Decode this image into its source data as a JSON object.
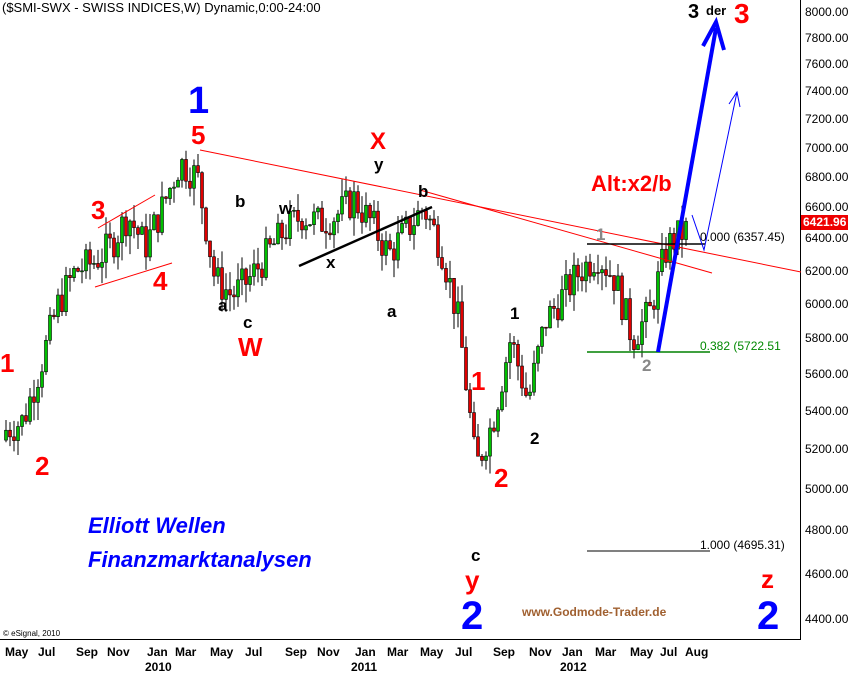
{
  "chart_data": {
    "type": "candlestick",
    "title": "($SMI-SWX - SWISS INDICES,W) Dynamic,0:00-24:00",
    "y_scale": "log",
    "ylim": [
      4300,
      8100
    ],
    "y_ticks": [
      "8000.00",
      "7800.00",
      "7600.00",
      "7400.00",
      "7200.00",
      "7000.00",
      "6800.00",
      "6600.00",
      "6400.00",
      "6200.00",
      "6000.00",
      "5800.00",
      "5600.00",
      "5400.00",
      "5200.00",
      "5000.00",
      "4800.00",
      "4600.00",
      "4400.00"
    ],
    "x_ticks": [
      "May",
      "Jul",
      "Sep",
      "Nov",
      "Jan",
      "Mar",
      "May",
      "Jul",
      "Sep",
      "Nov",
      "Jan",
      "Mar",
      "May",
      "Jul",
      "Sep",
      "Nov",
      "Jan",
      "Mar",
      "May",
      "Jul",
      "Aug"
    ],
    "x_years": [
      "2010",
      "2011",
      "2012"
    ],
    "monthly_close_approx": {
      "months": [
        "2009-05",
        "2009-06",
        "2009-07",
        "2009-08",
        "2009-09",
        "2009-10",
        "2009-11",
        "2009-12",
        "2010-01",
        "2010-02",
        "2010-03",
        "2010-04",
        "2010-05",
        "2010-06",
        "2010-07",
        "2010-08",
        "2010-09",
        "2010-10",
        "2010-11",
        "2010-12",
        "2011-01",
        "2011-02",
        "2011-03",
        "2011-04",
        "2011-05",
        "2011-06",
        "2011-07",
        "2011-08",
        "2011-09",
        "2011-10",
        "2011-11",
        "2011-12",
        "2012-01",
        "2012-02",
        "2012-03",
        "2012-04",
        "2012-05",
        "2012-06",
        "2012-07",
        "2012-08"
      ],
      "close": [
        5300,
        5350,
        5650,
        6000,
        6200,
        6250,
        6350,
        6550,
        6350,
        6600,
        6900,
        6800,
        6150,
        6050,
        6150,
        6300,
        6450,
        6550,
        6500,
        6550,
        6650,
        6500,
        6300,
        6450,
        6600,
        6350,
        5900,
        5100,
        5350,
        5800,
        5450,
        5900,
        6050,
        6200,
        6300,
        6150,
        5800,
        5950,
        6350,
        6450
      ]
    },
    "last_price": "6421.96",
    "fib_levels": [
      {
        "label": "0.000 (6357.45)",
        "value": 6357.45,
        "color": "#000000"
      },
      {
        "label": "0.382 (5722.51",
        "value": 5722.51,
        "color": "#008000"
      },
      {
        "label": "1.000 (4695.31)",
        "value": 4695.31,
        "color": "#000000"
      }
    ],
    "colors": {
      "up": "#00c000",
      "down": "#e00000",
      "trend": "#ff0000",
      "projection": "#0000ff"
    }
  },
  "annotations": {
    "w1_blue": "1",
    "w5": "5",
    "w3": "3",
    "w4": "4",
    "w1_left": "1",
    "w2_left": "2",
    "a1": "a",
    "b1": "b",
    "c1": "c",
    "W": "W",
    "w_small": "w",
    "x_small": "x",
    "y_small": "y",
    "X": "X",
    "b2": "b",
    "a2": "a",
    "c2": "c",
    "y_red": "y",
    "w2_blue": "2",
    "r1": "1",
    "r2": "2",
    "k1": "1",
    "k2": "2",
    "g1": "1",
    "g2": "2",
    "alt": "Alt:x2/b",
    "top3": "3",
    "der": "der",
    "top3_red": "3",
    "z": "z",
    "w2_blue_right": "2"
  },
  "branding": {
    "line1": "Elliott Wellen",
    "line2": "Finanzmarktanalysen",
    "site": "www.Godmode-Trader.de",
    "copyright": "© eSignal, 2010"
  }
}
